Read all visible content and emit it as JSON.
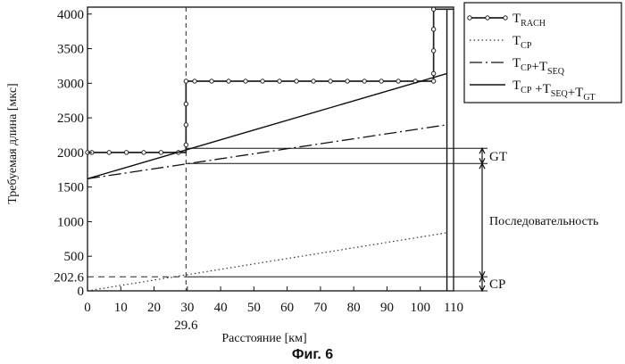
{
  "chart_data": {
    "type": "line",
    "title": "",
    "xlabel": "Расстояние [км]",
    "ylabel": "Требуемая длина [мкс]",
    "xlim": [
      0,
      110
    ],
    "ylim": [
      0,
      4100
    ],
    "xticks": [
      0,
      10,
      20,
      30,
      40,
      50,
      60,
      70,
      80,
      90,
      100,
      110
    ],
    "yticks": [
      0,
      500,
      1000,
      1500,
      2000,
      2500,
      3000,
      3500,
      4000
    ],
    "special_x_tick": {
      "value": 29.6,
      "label": "29.6"
    },
    "special_y_tick": {
      "value": 202.6,
      "label": "202.6"
    },
    "grid": false,
    "legend_position": "outside-top-right",
    "series": [
      {
        "name": "T_RACH",
        "legend": {
          "main": "T",
          "sub": "RACH"
        },
        "style": "solid-with-circle-markers",
        "step_x": [
          0,
          29.6,
          29.6,
          104,
          104,
          110
        ],
        "step_y": [
          2000,
          2000,
          3030,
          3030,
          4070,
          4070
        ],
        "marker_x": [
          0,
          1.3,
          6.5,
          11.7,
          16.9,
          22.1,
          27.3,
          29.6,
          29.6,
          29.6,
          29.6,
          32.2,
          37.3,
          42.4,
          47.5,
          52.6,
          57.7,
          62.8,
          67.9,
          73,
          78.1,
          83.2,
          88.3,
          93.4,
          98.5,
          104,
          104,
          104,
          104,
          104
        ],
        "marker_y": [
          2000,
          2000,
          2000,
          2000,
          2000,
          2000,
          2000,
          2110,
          2400,
          2700,
          3030,
          3030,
          3030,
          3030,
          3030,
          3030,
          3030,
          3030,
          3030,
          3030,
          3030,
          3030,
          3030,
          3030,
          3030,
          3030,
          3140,
          3470,
          3780,
          4070
        ]
      },
      {
        "name": "T_CP",
        "legend": {
          "parts": [
            {
              "t": "T"
            },
            {
              "t": "CP",
              "sub": true
            }
          ]
        },
        "style": "dotted",
        "x": [
          0,
          108
        ],
        "y": [
          0,
          840
        ]
      },
      {
        "name": "T_CP+T_SEQ",
        "legend": {
          "parts": [
            {
              "t": "T"
            },
            {
              "t": "CP",
              "sub": true
            },
            {
              "t": "+T"
            },
            {
              "t": "SEQ",
              "sub": true
            }
          ]
        },
        "style": "dash-dot",
        "x": [
          0,
          108
        ],
        "y": [
          1620,
          2400
        ]
      },
      {
        "name": "T_CP+T_SEQ+T_GT",
        "legend": {
          "parts": [
            {
              "t": "T"
            },
            {
              "t": "CP",
              "sub": true
            },
            {
              "t": " +T"
            },
            {
              "t": "SEQ",
              "sub": true
            },
            {
              "t": "+T"
            },
            {
              "t": "GT",
              "sub": true
            }
          ]
        },
        "style": "solid",
        "x": [
          0,
          108
        ],
        "y": [
          1620,
          3140
        ]
      }
    ],
    "annotations": {
      "vertical_dashed_x": 29.6,
      "horizontal_dashed_y": 202.6,
      "right_boundary_x": 108,
      "reference_lines": [
        {
          "y": 2060,
          "from_x": 29.6
        },
        {
          "y": 1840,
          "from_x": 29.6
        },
        {
          "y": 202.6,
          "from_x": 29.6
        },
        {
          "y": 0,
          "from_x": 29.6
        }
      ],
      "brackets": [
        {
          "label": "GT",
          "y_top": 2060,
          "y_bottom": 1840
        },
        {
          "label": "Последовательность",
          "y_top": 1840,
          "y_bottom": 202.6
        },
        {
          "label": "CP",
          "y_top": 202.6,
          "y_bottom": 0
        }
      ]
    },
    "caption": "Фиг. 6"
  }
}
